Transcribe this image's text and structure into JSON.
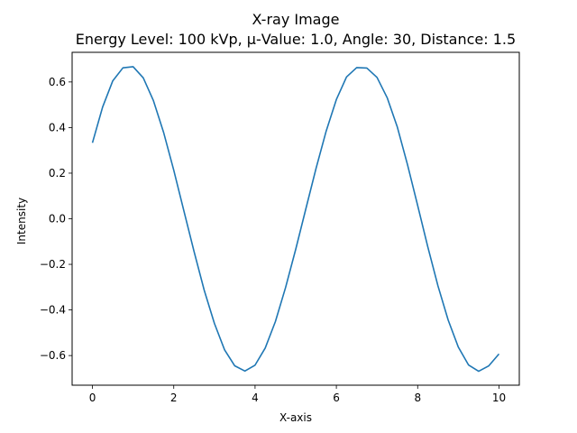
{
  "chart_data": {
    "type": "line",
    "title": "X-ray Image",
    "subtitle": "Energy Level: 100 kVp, μ-Value: 1.0, Angle: 30, Distance: 1.5",
    "xlabel": "X-axis",
    "ylabel": "Intensity",
    "xlim": [
      -0.5,
      10.5
    ],
    "ylim": [
      -0.73,
      0.73
    ],
    "xticks": [
      0,
      2,
      4,
      6,
      8,
      10
    ],
    "xtick_labels": [
      "0",
      "2",
      "4",
      "6",
      "8",
      "10"
    ],
    "yticks": [
      -0.6,
      -0.4,
      -0.2,
      0.0,
      0.2,
      0.4,
      0.6
    ],
    "ytick_labels": [
      "−0.6",
      "−0.4",
      "−0.2",
      "0.0",
      "0.2",
      "0.4",
      "0.6"
    ],
    "grid": false,
    "colors": {
      "line": "#1f77b4"
    },
    "series": [
      {
        "x": [
          0,
          0.25,
          0.5,
          0.75,
          1.0,
          1.25,
          1.5,
          1.75,
          2.0,
          2.25,
          2.5,
          2.75,
          3.0,
          3.25,
          3.5,
          3.75,
          4.0,
          4.25,
          4.5,
          4.75,
          5.0,
          5.25,
          5.5,
          5.75,
          6.0,
          6.25,
          6.5,
          6.75,
          7.0,
          7.25,
          7.5,
          7.75,
          8.0,
          8.25,
          8.5,
          8.75,
          9.0,
          9.25,
          9.5,
          9.75,
          10.0
        ],
        "y": [
          0.333,
          0.49,
          0.605,
          0.662,
          0.667,
          0.618,
          0.518,
          0.379,
          0.213,
          0.034,
          -0.144,
          -0.314,
          -0.459,
          -0.575,
          -0.645,
          -0.668,
          -0.642,
          -0.567,
          -0.451,
          -0.302,
          -0.134,
          0.044,
          0.221,
          0.385,
          0.523,
          0.622,
          0.663,
          0.661,
          0.62,
          0.531,
          0.402,
          0.237,
          0.058,
          -0.124,
          -0.295,
          -0.444,
          -0.563,
          -0.641,
          -0.669,
          -0.645,
          -0.593
        ]
      }
    ]
  }
}
